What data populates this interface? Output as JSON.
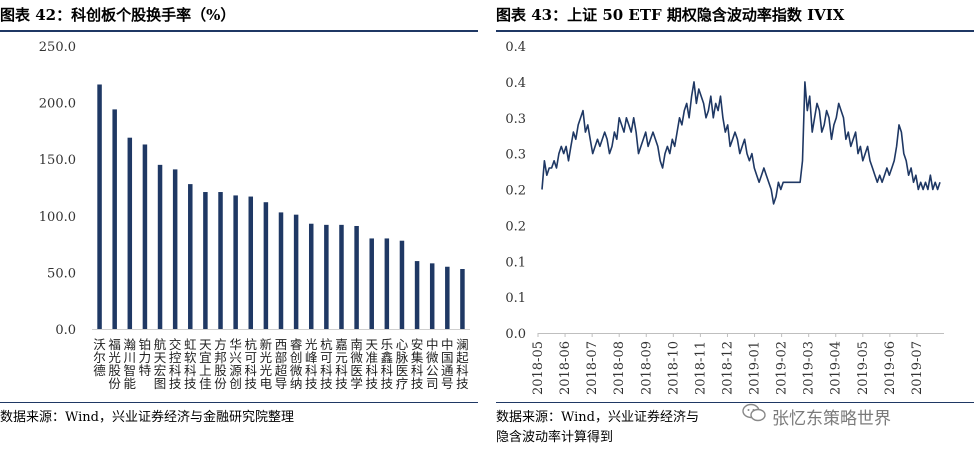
{
  "left": {
    "title": "图表 42：科创板个股换手率（%）",
    "source": "数据来源：Wind，兴业证券经济与金融研究院整理",
    "chart_data": {
      "type": "bar",
      "categories": [
        "沃尔德",
        "福光股份",
        "瀚川智能",
        "铂力特",
        "航天宏图",
        "交控科技",
        "虹软科技",
        "天宜上佳",
        "方邦股份",
        "华兴源创",
        "杭可科技",
        "新光光电",
        "西部超导",
        "睿创微纳",
        "光峰科技",
        "杭可科技",
        "嘉元科技",
        "南微医学",
        "天准科技",
        "乐鑫科技",
        "心脉医疗",
        "安集科技",
        "中微公司",
        "中国通号",
        "澜起科技"
      ],
      "values": [
        216,
        194,
        169,
        163,
        145,
        141,
        128,
        121,
        121,
        118,
        117,
        112,
        103,
        101,
        93,
        92,
        92,
        91,
        80,
        80,
        78,
        60,
        58,
        55,
        53
      ],
      "ylim": [
        0,
        250
      ],
      "yticks": [
        "0.0",
        "50.0",
        "100.0",
        "150.0",
        "200.0",
        "250.0"
      ],
      "bar_color": "#1f3864"
    }
  },
  "right": {
    "title": "图表 43：上证 50 ETF 期权隐含波动率指数 IVIX",
    "source_line1": "数据来源：Wind，兴业证券经济与",
    "source_line2": "隐含波动率计算得到",
    "chart_data": {
      "type": "line",
      "series": [
        {
          "name": "IVIX",
          "values": [
            0.2,
            0.24,
            0.22,
            0.23,
            0.23,
            0.24,
            0.23,
            0.25,
            0.26,
            0.25,
            0.26,
            0.24,
            0.26,
            0.28,
            0.27,
            0.29,
            0.3,
            0.31,
            0.28,
            0.29,
            0.27,
            0.25,
            0.26,
            0.27,
            0.26,
            0.27,
            0.28,
            0.27,
            0.25,
            0.26,
            0.28,
            0.27,
            0.3,
            0.29,
            0.28,
            0.3,
            0.29,
            0.28,
            0.3,
            0.28,
            0.25,
            0.26,
            0.27,
            0.28,
            0.26,
            0.27,
            0.28,
            0.27,
            0.26,
            0.24,
            0.23,
            0.25,
            0.26,
            0.25,
            0.27,
            0.26,
            0.28,
            0.3,
            0.29,
            0.31,
            0.32,
            0.3,
            0.33,
            0.35,
            0.32,
            0.34,
            0.33,
            0.32,
            0.3,
            0.31,
            0.33,
            0.3,
            0.32,
            0.31,
            0.33,
            0.3,
            0.28,
            0.29,
            0.26,
            0.27,
            0.28,
            0.27,
            0.25,
            0.26,
            0.27,
            0.25,
            0.24,
            0.25,
            0.23,
            0.22,
            0.21,
            0.22,
            0.23,
            0.22,
            0.21,
            0.2,
            0.18,
            0.19,
            0.21,
            0.2,
            0.21,
            0.21,
            0.21,
            0.21,
            0.21,
            0.21,
            0.21,
            0.21,
            0.24,
            0.35,
            0.31,
            0.33,
            0.28,
            0.3,
            0.32,
            0.31,
            0.28,
            0.29,
            0.31,
            0.3,
            0.27,
            0.29,
            0.3,
            0.32,
            0.31,
            0.3,
            0.27,
            0.28,
            0.26,
            0.27,
            0.28,
            0.25,
            0.26,
            0.24,
            0.25,
            0.26,
            0.24,
            0.23,
            0.22,
            0.21,
            0.22,
            0.21,
            0.22,
            0.23,
            0.22,
            0.23,
            0.24,
            0.26,
            0.29,
            0.28,
            0.25,
            0.24,
            0.22,
            0.23,
            0.21,
            0.22,
            0.2,
            0.21,
            0.2,
            0.21,
            0.2,
            0.22,
            0.2,
            0.21,
            0.2,
            0.21
          ]
        }
      ],
      "xlabels": [
        "2018-05",
        "2018-06",
        "2018-07",
        "2018-08",
        "2018-09",
        "2018-10",
        "2018-11",
        "2018-12",
        "2019-01",
        "2019-02",
        "2019-03",
        "2019-04",
        "2019-05",
        "2019-06",
        "2019-07"
      ],
      "yticks": [
        "0.0",
        "0.1",
        "0.1",
        "0.2",
        "0.2",
        "0.3",
        "0.3",
        "0.4",
        "0.4"
      ],
      "ylim": [
        0,
        0.4
      ],
      "line_color": "#1f3864"
    }
  },
  "watermark": {
    "text": "张忆东策略世界"
  }
}
